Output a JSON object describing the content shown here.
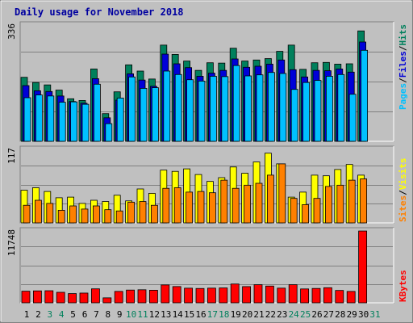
{
  "colors": {
    "background": "#C0C0C0",
    "hits": "#00805C",
    "files": "#0000D8",
    "pages": "#00C0FF",
    "visits": "#FFFF00",
    "sites": "#FF8000",
    "kbytes": "#FF0000",
    "title": "#0000A0",
    "weekend_label": "#00805C"
  },
  "chart_data": [
    {
      "type": "bar",
      "title": "Daily usage for November 2018",
      "ylabel_parts": [
        "Pages",
        "Files",
        "Hits"
      ],
      "ymax_label": "336",
      "ylim": [
        0,
        336
      ],
      "categories": [
        "1",
        "2",
        "3",
        "4",
        "5",
        "6",
        "7",
        "8",
        "9",
        "10",
        "11",
        "12",
        "13",
        "14",
        "15",
        "16",
        "17",
        "18",
        "19",
        "20",
        "21",
        "22",
        "23",
        "24",
        "25",
        "26",
        "27",
        "28",
        "29",
        "30",
        "31"
      ],
      "weekend_days": [
        "3",
        "4",
        "10",
        "11",
        "17",
        "18",
        "24",
        "25",
        "31"
      ],
      "series": [
        {
          "name": "Hits",
          "values": [
            185,
            170,
            163,
            148,
            123,
            118,
            209,
            80,
            143,
            221,
            203,
            180,
            278,
            251,
            232,
            205,
            227,
            226,
            269,
            232,
            235,
            239,
            260,
            278,
            208,
            227,
            228,
            223,
            224,
            319,
            0
          ]
        },
        {
          "name": "Files",
          "values": [
            161,
            146,
            144,
            131,
            115,
            110,
            181,
            68,
            119,
            195,
            177,
            159,
            252,
            224,
            213,
            188,
            197,
            205,
            238,
            214,
            217,
            223,
            235,
            207,
            186,
            205,
            204,
            209,
            200,
            287,
            0
          ]
        },
        {
          "name": "Pages",
          "values": [
            126,
            134,
            131,
            113,
            114,
            107,
            165,
            51,
            125,
            186,
            153,
            155,
            203,
            193,
            178,
            174,
            188,
            187,
            219,
            189,
            192,
            199,
            196,
            150,
            170,
            176,
            188,
            193,
            136,
            263,
            0
          ]
        }
      ]
    },
    {
      "type": "bar",
      "ylabel_parts": [
        "Sites",
        "Visits"
      ],
      "ymax_label": "117",
      "ylim": [
        0,
        117
      ],
      "categories": [
        "1",
        "2",
        "3",
        "4",
        "5",
        "6",
        "7",
        "8",
        "9",
        "10",
        "11",
        "12",
        "13",
        "14",
        "15",
        "16",
        "17",
        "18",
        "19",
        "20",
        "21",
        "22",
        "23",
        "24",
        "25",
        "26",
        "27",
        "28",
        "29",
        "30",
        "31"
      ],
      "series": [
        {
          "name": "Visits",
          "values": [
            52,
            56,
            50,
            40,
            41,
            31,
            36,
            34,
            44,
            35,
            54,
            47,
            84,
            82,
            86,
            77,
            66,
            72,
            89,
            79,
            97,
            111,
            94,
            41,
            49,
            76,
            75,
            85,
            93,
            76,
            0
          ]
        },
        {
          "name": "Sites",
          "values": [
            28,
            36,
            31,
            20,
            27,
            22,
            27,
            21,
            19,
            33,
            34,
            28,
            55,
            56,
            49,
            50,
            48,
            68,
            55,
            60,
            63,
            76,
            94,
            39,
            29,
            39,
            58,
            60,
            68,
            70,
            0
          ]
        }
      ]
    },
    {
      "type": "bar",
      "ylabel_parts": [
        "KBytes"
      ],
      "ymax_label": "11748",
      "ylim": [
        0,
        11748
      ],
      "categories": [
        "1",
        "2",
        "3",
        "4",
        "5",
        "6",
        "7",
        "8",
        "9",
        "10",
        "11",
        "12",
        "13",
        "14",
        "15",
        "16",
        "17",
        "18",
        "19",
        "20",
        "21",
        "22",
        "23",
        "24",
        "25",
        "26",
        "27",
        "28",
        "29",
        "30",
        "31"
      ],
      "series": [
        {
          "name": "KBytes",
          "values": [
            1900,
            1951,
            1976,
            1718,
            1508,
            1591,
            2285,
            810,
            1866,
            2086,
            2133,
            2059,
            2921,
            2659,
            2392,
            2345,
            2400,
            2433,
            3074,
            2653,
            2961,
            2741,
            2401,
            2964,
            2270,
            2350,
            2468,
            2023,
            1864,
            11738,
            0
          ]
        }
      ]
    }
  ]
}
